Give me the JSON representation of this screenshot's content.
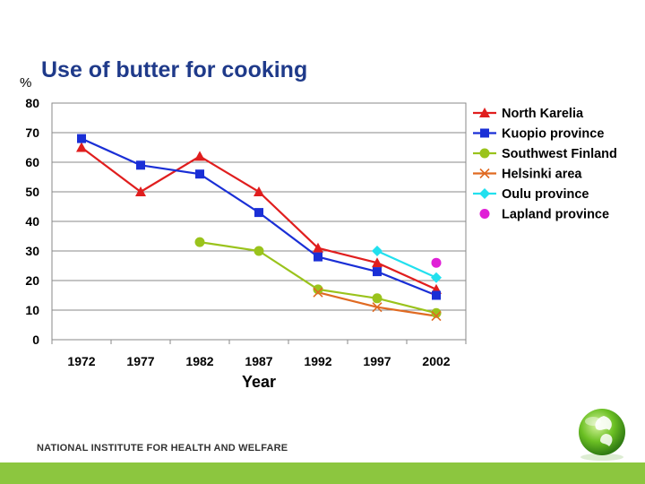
{
  "slide": {
    "title": "Use of butter for cooking",
    "yunit": "%",
    "footer": "NATIONAL INSTITUTE FOR HEALTH AND WELFARE"
  },
  "colors": {
    "footer_bar": "#8cc63f",
    "title": "#1f3a8a"
  },
  "chart_data": {
    "type": "line",
    "title": "Use of butter for cooking",
    "xlabel": "Year",
    "ylabel": "%",
    "categories": [
      "1972",
      "1977",
      "1982",
      "1987",
      "1992",
      "1997",
      "2002"
    ],
    "ylim": [
      0,
      80
    ],
    "yticks": [
      0,
      10,
      20,
      30,
      40,
      50,
      60,
      70,
      80
    ],
    "grid": true,
    "legend": "right",
    "series": [
      {
        "name": "North Karelia",
        "color": "#e01e1e",
        "marker": "triangle",
        "values": [
          65,
          50,
          62,
          50,
          31,
          26,
          17
        ]
      },
      {
        "name": "Kuopio province",
        "color": "#1a2fd6",
        "marker": "square",
        "values": [
          68,
          59,
          56,
          43,
          28,
          23,
          15
        ]
      },
      {
        "name": "Southwest Finland",
        "color": "#9ac31c",
        "marker": "circle",
        "values": [
          null,
          null,
          33,
          30,
          17,
          14,
          9
        ]
      },
      {
        "name": "Helsinki area",
        "color": "#e06a22",
        "marker": "x",
        "values": [
          null,
          null,
          null,
          null,
          16,
          11,
          8
        ]
      },
      {
        "name": "Oulu province",
        "color": "#22e0ee",
        "marker": "diamond",
        "values": [
          null,
          null,
          null,
          null,
          null,
          30,
          21
        ]
      },
      {
        "name": "Lapland province",
        "color": "#e020d6",
        "marker": "circle",
        "values": [
          null,
          null,
          null,
          null,
          null,
          null,
          26
        ]
      }
    ]
  }
}
